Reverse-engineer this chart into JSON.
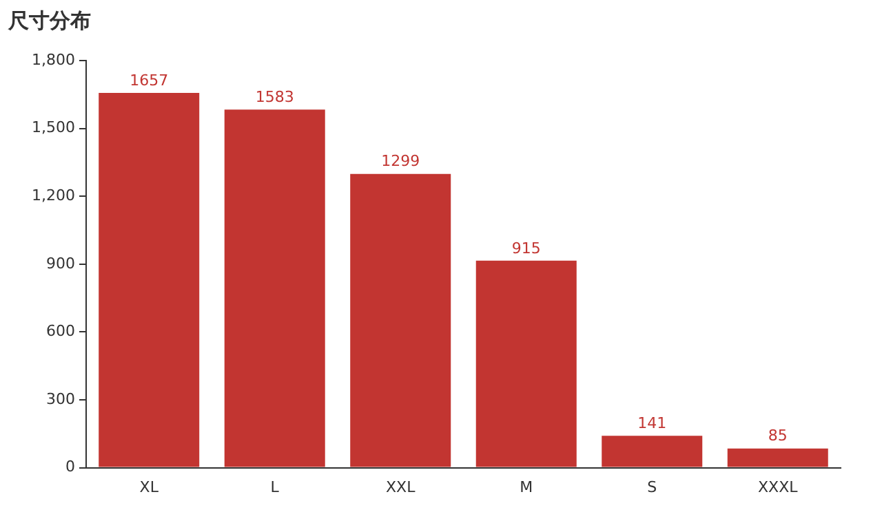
{
  "chart_data": {
    "type": "bar",
    "title": "尺寸分布",
    "categories": [
      "XL",
      "L",
      "XXL",
      "M",
      "S",
      "XXXL"
    ],
    "values": [
      1657,
      1583,
      1299,
      915,
      141,
      85
    ],
    "color": "#c23531",
    "ylim": [
      0,
      1800
    ],
    "yticks": [
      0,
      300,
      600,
      900,
      {
        "value": 1200,
        "label": "1,200"
      },
      {
        "value": 1500,
        "label": "1,500"
      },
      {
        "value": 1800,
        "label": "1,800"
      }
    ],
    "grid": false,
    "legend": false,
    "data_labels": true
  }
}
